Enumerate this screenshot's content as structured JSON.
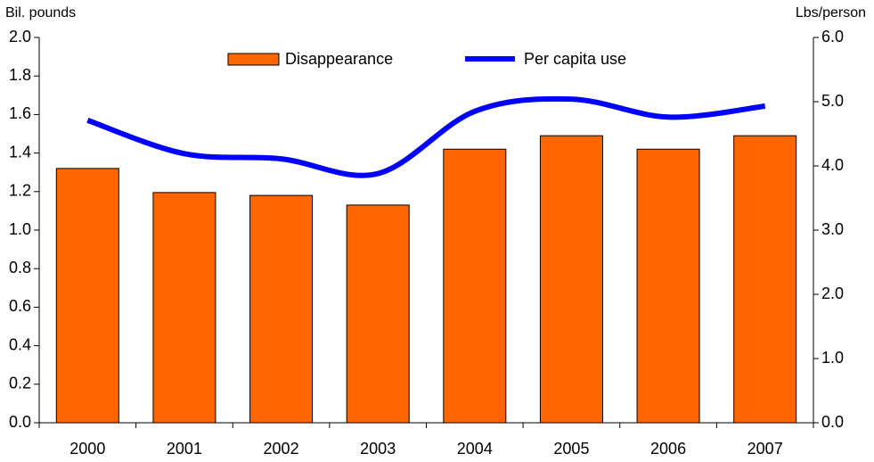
{
  "chart_data": {
    "type": "bar-line",
    "y_label": "Bil. pounds",
    "y2_label": "Lbs/person",
    "categories": [
      "2000",
      "2001",
      "2002",
      "2003",
      "2004",
      "2005",
      "2006",
      "2007"
    ],
    "series": [
      {
        "name": "Disappearance",
        "type": "bar",
        "color": "#ff6600",
        "values": [
          1.32,
          1.195,
          1.18,
          1.13,
          1.42,
          1.49,
          1.42,
          1.49
        ]
      },
      {
        "name": "Per capita use",
        "type": "line",
        "axis": "y2",
        "color": "#0000ff",
        "values": [
          4.71,
          4.19,
          4.11,
          3.88,
          4.85,
          5.04,
          4.76,
          4.93
        ]
      }
    ],
    "ylim": [
      0,
      2.0
    ],
    "yticks": [
      {
        "value": 0,
        "label": "0.0"
      },
      0.2,
      0.4,
      0.6,
      0.8,
      {
        "value": 1,
        "label": "1.0"
      },
      1.2,
      1.4,
      1.6,
      1.8,
      {
        "value": 2,
        "label": "2.0"
      }
    ],
    "y2lim": [
      0,
      6.0
    ],
    "y2ticks": [
      {
        "value": 0,
        "label": "0.0"
      },
      {
        "value": 1,
        "label": "1.0"
      },
      {
        "value": 2,
        "label": "2.0"
      },
      {
        "value": 3,
        "label": "3.0"
      },
      {
        "value": 4,
        "label": "4.0"
      },
      {
        "value": 5,
        "label": "5.0"
      },
      {
        "value": 6,
        "label": "6.0"
      }
    ],
    "grid": false
  }
}
